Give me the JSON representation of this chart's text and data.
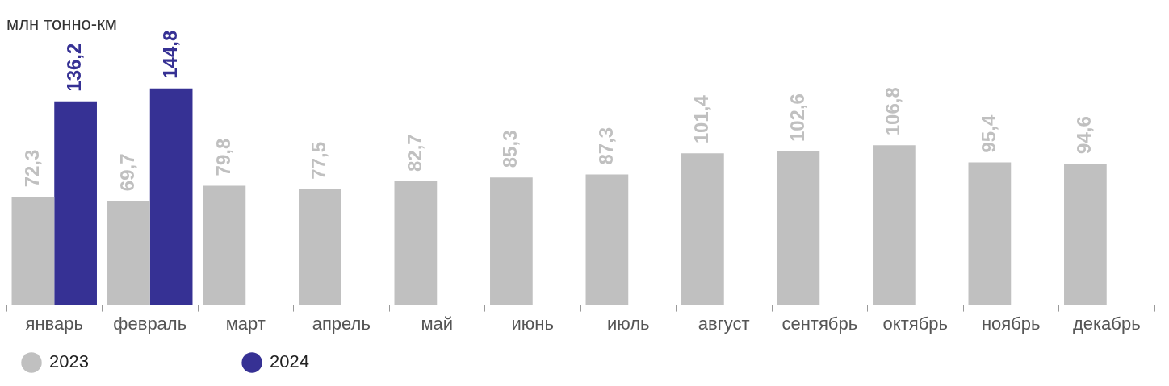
{
  "chart_data": {
    "type": "bar",
    "title": "млн тонно-км",
    "categories": [
      "январь",
      "февраль",
      "март",
      "апрель",
      "май",
      "июнь",
      "июль",
      "август",
      "сентябрь",
      "октябрь",
      "ноябрь",
      "декабрь"
    ],
    "series": [
      {
        "name": "2023",
        "color": "#c0c0c0",
        "values": [
          72.3,
          69.7,
          79.8,
          77.5,
          82.7,
          85.3,
          87.3,
          101.4,
          102.6,
          106.8,
          95.4,
          94.6
        ],
        "value_labels": [
          "72,3",
          "69,7",
          "79,8",
          "77,5",
          "82,7",
          "85,3",
          "87,3",
          "101,4",
          "102,6",
          "106,8",
          "95,4",
          "94,6"
        ]
      },
      {
        "name": "2024",
        "color": "#363194",
        "values": [
          136.2,
          144.8,
          null,
          null,
          null,
          null,
          null,
          null,
          null,
          null,
          null,
          null
        ],
        "value_labels": [
          "136,2",
          "144,8",
          null,
          null,
          null,
          null,
          null,
          null,
          null,
          null,
          null,
          null
        ]
      }
    ],
    "legend": "bottom left",
    "grid": false
  }
}
